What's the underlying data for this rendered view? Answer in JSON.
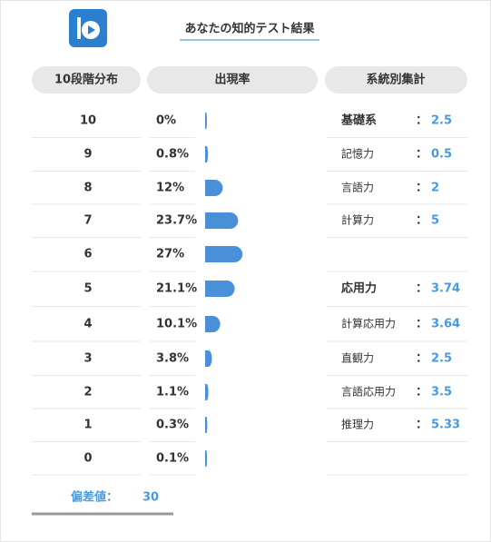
{
  "header": {
    "title": "あなたの知的テスト結果"
  },
  "columns": [
    "10段階分布",
    "出現率",
    "系統別集計"
  ],
  "rows": [
    {
      "level": 10,
      "rate": 0,
      "rate_label": "0%"
    },
    {
      "level": 9,
      "rate": 0.8,
      "rate_label": "0.8%"
    },
    {
      "level": 8,
      "rate": 12,
      "rate_label": "12%"
    },
    {
      "level": 7,
      "rate": 23.7,
      "rate_label": "23.7%"
    },
    {
      "level": 6,
      "rate": 27,
      "rate_label": "27%"
    },
    {
      "level": 5,
      "rate": 21.1,
      "rate_label": "21.1%"
    },
    {
      "level": 4,
      "rate": 10.1,
      "rate_label": "10.1%"
    },
    {
      "level": 3,
      "rate": 3.8,
      "rate_label": "3.8%"
    },
    {
      "level": 2,
      "rate": 1.1,
      "rate_label": "1.1%"
    },
    {
      "level": 1,
      "rate": 0.3,
      "rate_label": "0.3%"
    },
    {
      "level": 0,
      "rate": 0.1,
      "rate_label": "0.1%"
    }
  ],
  "separator": "：",
  "groups": [
    {
      "title": {
        "name": "基礎系",
        "value": 2.5
      },
      "items": [
        {
          "name": "記憶力",
          "value": 0.5
        },
        {
          "name": "言語力",
          "value": 2
        },
        {
          "name": "計算力",
          "value": 5
        }
      ]
    },
    {
      "title": {
        "name": "応用力",
        "value": 3.74
      },
      "items": [
        {
          "name": "計算応用力",
          "value": 3.64
        },
        {
          "name": "直観力",
          "value": 2.5
        },
        {
          "name": "言語応用力",
          "value": 3.5
        },
        {
          "name": "推理力",
          "value": 5.33
        }
      ]
    }
  ],
  "score": {
    "label": "偏差値：",
    "value": 30
  }
}
